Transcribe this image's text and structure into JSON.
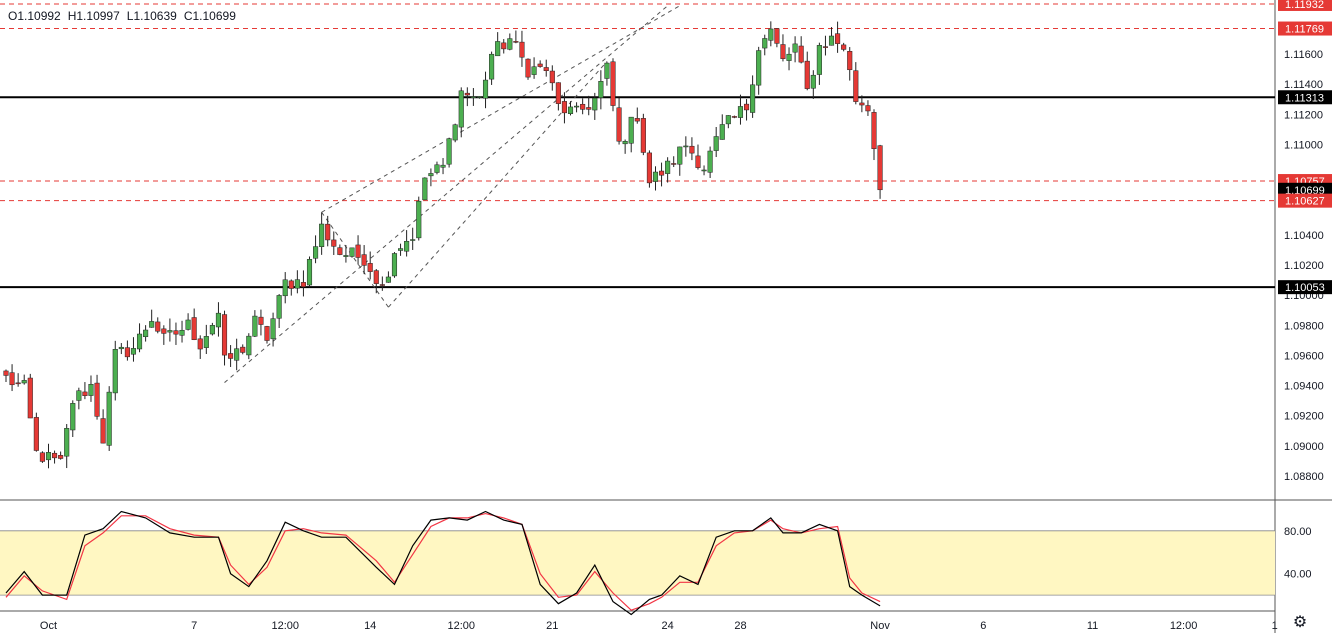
{
  "ohlc_header": {
    "open": "O1.10992",
    "high": "H1.10997",
    "low": "L1.10639",
    "close": "C1.10699"
  },
  "icons": {
    "settings": "gear-icon"
  },
  "colors": {
    "bull": "#26a69a",
    "bull_body": "#4caf50",
    "bear": "#e53935",
    "hline_black": "#000000",
    "hline_red": "#e53935",
    "stoch_band": "#fff7c2",
    "stoch_k": "#000000",
    "stoch_d": "#f23645",
    "channel": "#555555"
  },
  "chart_data": [
    {
      "type": "candlestick",
      "ylim": [
        1.088,
        1.1195
      ],
      "price_ticks": [
        "1.11600",
        "1.11400",
        "1.11200",
        "1.11000",
        "1.10400",
        "1.10200",
        "1.10000",
        "1.09800",
        "1.09600",
        "1.09400",
        "1.09200",
        "1.09000",
        "1.08800"
      ],
      "time_ticks": [
        "Oct",
        "7",
        "12:00",
        "14",
        "12:00",
        "21",
        "24",
        "28",
        "Nov",
        "6",
        "11",
        "12:00",
        "1"
      ],
      "price_labels": [
        {
          "value": 1.11932,
          "text": "1.11932",
          "style": "red"
        },
        {
          "value": 1.11769,
          "text": "1.11769",
          "style": "red"
        },
        {
          "value": 1.11313,
          "text": "1.11313",
          "style": "black"
        },
        {
          "value": 1.10757,
          "text": "1.10757",
          "style": "red"
        },
        {
          "value": 1.10699,
          "text": "1.10699",
          "style": "black"
        },
        {
          "value": 1.10627,
          "text": "1.10627",
          "style": "red"
        },
        {
          "value": 1.10053,
          "text": "1.10053",
          "style": "black"
        }
      ],
      "horizontal_lines": [
        {
          "value": 1.11932,
          "style": "dashed-red"
        },
        {
          "value": 1.11769,
          "style": "dashed-red"
        },
        {
          "value": 1.11313,
          "style": "solid-black"
        },
        {
          "value": 1.10757,
          "style": "dashed-red"
        },
        {
          "value": 1.10627,
          "style": "dashed-red"
        },
        {
          "value": 1.10053,
          "style": "solid-black"
        }
      ],
      "anchors": [
        {
          "bar": 0,
          "price": 1.0945
        },
        {
          "bar": 3,
          "price": 1.0938
        },
        {
          "bar": 5,
          "price": 1.0895
        },
        {
          "bar": 9,
          "price": 1.0888
        },
        {
          "bar": 11,
          "price": 1.093
        },
        {
          "bar": 14,
          "price": 1.094
        },
        {
          "bar": 16,
          "price": 1.0905
        },
        {
          "bar": 18,
          "price": 1.096
        },
        {
          "bar": 21,
          "price": 1.0965
        },
        {
          "bar": 24,
          "price": 1.0985
        },
        {
          "bar": 26,
          "price": 1.097
        },
        {
          "bar": 30,
          "price": 1.098
        },
        {
          "bar": 32,
          "price": 1.0968
        },
        {
          "bar": 35,
          "price": 1.0988
        },
        {
          "bar": 36,
          "price": 1.0955
        },
        {
          "bar": 39,
          "price": 1.0965
        },
        {
          "bar": 41,
          "price": 1.0982
        },
        {
          "bar": 43,
          "price": 1.0972
        },
        {
          "bar": 46,
          "price": 1.1008
        },
        {
          "bar": 49,
          "price": 1.101
        },
        {
          "bar": 52,
          "price": 1.1045
        },
        {
          "bar": 55,
          "price": 1.1028
        },
        {
          "bar": 59,
          "price": 1.1025
        },
        {
          "bar": 62,
          "price": 1.1005
        },
        {
          "bar": 64,
          "price": 1.103
        },
        {
          "bar": 67,
          "price": 1.104
        },
        {
          "bar": 69,
          "price": 1.1078
        },
        {
          "bar": 72,
          "price": 1.1085
        },
        {
          "bar": 75,
          "price": 1.1135
        },
        {
          "bar": 78,
          "price": 1.113
        },
        {
          "bar": 80,
          "price": 1.116
        },
        {
          "bar": 83,
          "price": 1.117
        },
        {
          "bar": 86,
          "price": 1.115
        },
        {
          "bar": 89,
          "price": 1.115
        },
        {
          "bar": 91,
          "price": 1.1125
        },
        {
          "bar": 94,
          "price": 1.112
        },
        {
          "bar": 97,
          "price": 1.113
        },
        {
          "bar": 99,
          "price": 1.115
        },
        {
          "bar": 101,
          "price": 1.11
        },
        {
          "bar": 104,
          "price": 1.112
        },
        {
          "bar": 106,
          "price": 1.1075
        },
        {
          "bar": 109,
          "price": 1.1085
        },
        {
          "bar": 112,
          "price": 1.11
        },
        {
          "bar": 115,
          "price": 1.1085
        },
        {
          "bar": 118,
          "price": 1.111
        },
        {
          "bar": 122,
          "price": 1.1125
        },
        {
          "bar": 124,
          "price": 1.1165
        },
        {
          "bar": 126,
          "price": 1.1175
        },
        {
          "bar": 128,
          "price": 1.1155
        },
        {
          "bar": 130,
          "price": 1.1165
        },
        {
          "bar": 132,
          "price": 1.1135
        },
        {
          "bar": 134,
          "price": 1.1165
        },
        {
          "bar": 136,
          "price": 1.117
        },
        {
          "bar": 138,
          "price": 1.1165
        },
        {
          "bar": 140,
          "price": 1.113
        },
        {
          "bar": 142,
          "price": 1.1125
        },
        {
          "bar": 143,
          "price": 1.1099
        },
        {
          "bar": 144,
          "price": 1.10699
        }
      ],
      "channel_lines": [
        [
          [
            36,
            1.0942
          ],
          [
            109,
            1.1192
          ]
        ],
        [
          [
            52,
            1.1055
          ],
          [
            111,
            1.1192
          ]
        ],
        [
          [
            63,
            1.0992
          ],
          [
            99,
            1.1155
          ]
        ],
        [
          [
            52,
            1.1055
          ],
          [
            63,
            1.0992
          ]
        ]
      ]
    },
    {
      "type": "line",
      "title": "",
      "ylim": [
        0,
        100
      ],
      "y_ticks": [
        "80.00",
        "40.00"
      ],
      "band": [
        20,
        80
      ],
      "series_k": [
        [
          0,
          22
        ],
        [
          3,
          42
        ],
        [
          6,
          20
        ],
        [
          10,
          20
        ],
        [
          13,
          76
        ],
        [
          16,
          82
        ],
        [
          19,
          98
        ],
        [
          23,
          92
        ],
        [
          27,
          78
        ],
        [
          31,
          74
        ],
        [
          35,
          74
        ],
        [
          37,
          40
        ],
        [
          40,
          28
        ],
        [
          43,
          52
        ],
        [
          46,
          88
        ],
        [
          49,
          80
        ],
        [
          52,
          74
        ],
        [
          56,
          74
        ],
        [
          61,
          46
        ],
        [
          64,
          30
        ],
        [
          67,
          66
        ],
        [
          70,
          90
        ],
        [
          73,
          92
        ],
        [
          76,
          90
        ],
        [
          79,
          98
        ],
        [
          82,
          90
        ],
        [
          85,
          86
        ],
        [
          88,
          30
        ],
        [
          91,
          12
        ],
        [
          94,
          22
        ],
        [
          97,
          48
        ],
        [
          100,
          14
        ],
        [
          103,
          2
        ],
        [
          106,
          16
        ],
        [
          108,
          20
        ],
        [
          111,
          38
        ],
        [
          114,
          30
        ],
        [
          117,
          74
        ],
        [
          120,
          80
        ],
        [
          123,
          80
        ],
        [
          126,
          92
        ],
        [
          128,
          78
        ],
        [
          131,
          78
        ],
        [
          134,
          86
        ],
        [
          137,
          80
        ],
        [
          139,
          28
        ],
        [
          141,
          20
        ],
        [
          144,
          10
        ]
      ],
      "series_d": [
        [
          0,
          18
        ],
        [
          3,
          38
        ],
        [
          6,
          24
        ],
        [
          10,
          16
        ],
        [
          13,
          66
        ],
        [
          16,
          78
        ],
        [
          19,
          94
        ],
        [
          23,
          94
        ],
        [
          27,
          82
        ],
        [
          31,
          76
        ],
        [
          35,
          74
        ],
        [
          37,
          48
        ],
        [
          40,
          30
        ],
        [
          43,
          46
        ],
        [
          46,
          80
        ],
        [
          49,
          82
        ],
        [
          52,
          78
        ],
        [
          56,
          76
        ],
        [
          61,
          52
        ],
        [
          64,
          32
        ],
        [
          67,
          58
        ],
        [
          70,
          84
        ],
        [
          73,
          92
        ],
        [
          76,
          92
        ],
        [
          79,
          96
        ],
        [
          82,
          92
        ],
        [
          85,
          86
        ],
        [
          88,
          40
        ],
        [
          91,
          18
        ],
        [
          94,
          20
        ],
        [
          97,
          42
        ],
        [
          100,
          22
        ],
        [
          103,
          6
        ],
        [
          106,
          12
        ],
        [
          108,
          18
        ],
        [
          111,
          32
        ],
        [
          114,
          32
        ],
        [
          117,
          66
        ],
        [
          120,
          78
        ],
        [
          123,
          80
        ],
        [
          126,
          90
        ],
        [
          128,
          82
        ],
        [
          131,
          78
        ],
        [
          134,
          82
        ],
        [
          137,
          84
        ],
        [
          139,
          36
        ],
        [
          141,
          22
        ],
        [
          144,
          14
        ]
      ]
    }
  ]
}
